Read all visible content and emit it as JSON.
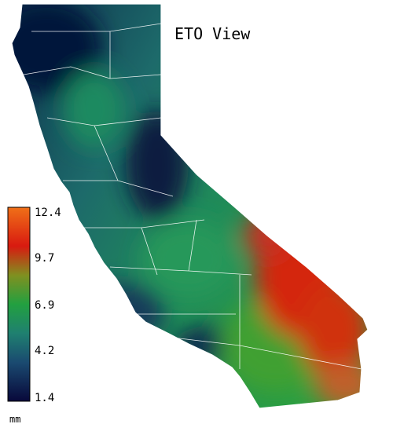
{
  "title": "ETO View",
  "colorbar": {
    "unit": "mm",
    "ticks": [
      12.4,
      9.7,
      6.9,
      4.2,
      1.4
    ]
  }
}
